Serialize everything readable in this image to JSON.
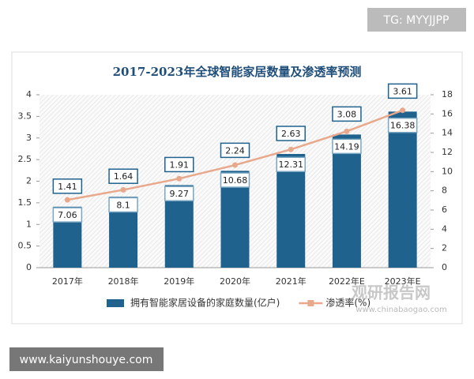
{
  "watermark": "TG: MYYJJPP",
  "footer": "www.kaiyunshouye.com",
  "logo": {
    "name": "观研报告网",
    "url": "www.chinabaogao.com"
  },
  "chart_data": {
    "type": "bar-line",
    "title": "2017-2023年全球智能家居数量及渗透率预测",
    "categories": [
      "2017年",
      "2018年",
      "2019年",
      "2020年",
      "2021年",
      "2022年E",
      "2023年E"
    ],
    "series": [
      {
        "name": "拥有智能家居设备的家庭数量(亿户)",
        "type": "bar",
        "color": "#1f628e",
        "values": [
          1.41,
          1.64,
          1.91,
          2.24,
          2.63,
          3.08,
          3.61
        ]
      },
      {
        "name": "渗透率(%)",
        "type": "line",
        "axis": "y2",
        "color": "#e8a88c",
        "values": [
          7.06,
          8.1,
          9.27,
          10.68,
          12.31,
          14.19,
          16.38
        ]
      }
    ],
    "ylim": [
      0,
      4
    ],
    "yticks": [
      0,
      0.5,
      1,
      1.5,
      2,
      2.5,
      3,
      3.5,
      4
    ],
    "y2lim": [
      0,
      18
    ],
    "y2ticks": [
      0,
      2,
      4,
      6,
      8,
      10,
      12,
      14,
      16,
      18
    ],
    "legend": "bottom"
  }
}
